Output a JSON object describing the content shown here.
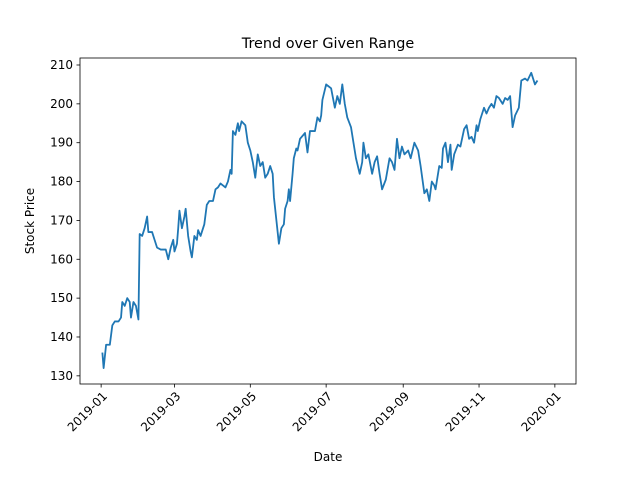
{
  "chart_data": {
    "type": "line",
    "title": "Trend over Given Range",
    "xlabel": "Date",
    "ylabel": "Stock Price",
    "x": [
      1,
      2,
      4,
      7,
      9,
      11,
      14,
      16,
      17,
      19,
      21,
      23,
      24,
      26,
      28,
      30,
      31,
      33,
      35,
      37,
      38,
      41,
      43,
      45,
      48,
      52,
      54,
      56,
      58,
      59,
      61,
      62,
      63,
      65,
      67,
      68,
      70,
      72,
      73,
      75,
      77,
      78,
      80,
      83,
      85,
      87,
      90,
      92,
      94,
      96,
      98,
      100,
      102,
      104,
      105,
      106,
      108,
      110,
      111,
      113,
      116,
      118,
      120,
      122,
      124,
      126,
      128,
      130,
      132,
      134,
      136,
      138,
      139,
      141,
      143,
      145,
      147,
      148,
      150,
      151,
      152,
      154,
      155,
      157,
      158,
      160,
      164,
      166,
      168,
      170,
      172,
      174,
      176,
      177,
      178,
      181,
      183,
      185,
      188,
      190,
      192,
      194,
      196,
      198,
      201,
      203,
      205,
      208,
      210,
      211,
      213,
      215,
      218,
      220,
      222,
      224,
      226,
      229,
      232,
      234,
      236,
      238,
      240,
      242,
      244,
      247,
      249,
      252,
      255,
      257,
      260,
      262,
      264,
      266,
      268,
      269,
      272,
      274,
      275,
      277,
      279,
      281,
      282,
      284,
      287,
      289,
      292,
      294,
      296,
      298,
      300,
      302,
      303,
      305,
      308,
      310,
      312,
      314,
      316,
      318,
      320,
      323,
      325,
      327,
      329,
      331,
      333,
      336,
      338,
      341,
      343,
      346,
      348,
      349,
      351
    ],
    "series": [
      {
        "name": "Stock Price",
        "color": "#1f77b4",
        "values": [
          136,
          132,
          138,
          138,
          143,
          144,
          144,
          145,
          149,
          148,
          150,
          149,
          145,
          149,
          148,
          144.5,
          166.5,
          166,
          168,
          171,
          167,
          167,
          165,
          163,
          162.5,
          162.5,
          160,
          163,
          165,
          162,
          164,
          168,
          172.5,
          168,
          171,
          173,
          166,
          162,
          160.5,
          166,
          165,
          167.5,
          166,
          169,
          174,
          175,
          175,
          178,
          178.5,
          179.5,
          179,
          178.5,
          180,
          183,
          182,
          193,
          192,
          195,
          193,
          195.5,
          194.5,
          190,
          188,
          185,
          181,
          187,
          184,
          185,
          181,
          182,
          184,
          182,
          176,
          170,
          164,
          168,
          169,
          173,
          175,
          178,
          175,
          182,
          186,
          188.5,
          188,
          191,
          192.5,
          187.5,
          193,
          193,
          193,
          196.5,
          195.5,
          197,
          201,
          205,
          204.5,
          204,
          199,
          202,
          200,
          205,
          200,
          196.5,
          194,
          190,
          186,
          182,
          185,
          190,
          186,
          187,
          182,
          185,
          186.5,
          182,
          178,
          180.5,
          186,
          185,
          183,
          191,
          186,
          189,
          187,
          188,
          186,
          190,
          188,
          184,
          177,
          178,
          175,
          180,
          179,
          178,
          184,
          183.5,
          188.5,
          190,
          185,
          189.5,
          183,
          187,
          189.5,
          189,
          193.5,
          194.5,
          191,
          191.5,
          190,
          194.5,
          193,
          196,
          199,
          197.5,
          199,
          200,
          199,
          202,
          201.5,
          200,
          201.5,
          201,
          202,
          194,
          197,
          199,
          206,
          206.5,
          206,
          208,
          206,
          205,
          206
        ]
      }
    ],
    "xlim": [
      -17,
      382
    ],
    "xticks": [
      {
        "value": 0,
        "label": "2019-01"
      },
      {
        "value": 59,
        "label": "2019-03"
      },
      {
        "value": 120,
        "label": "2019-05"
      },
      {
        "value": 181,
        "label": "2019-07"
      },
      {
        "value": 243,
        "label": "2019-09"
      },
      {
        "value": 304,
        "label": "2019-11"
      },
      {
        "value": 365,
        "label": "2020-01"
      }
    ],
    "ylim": [
      127.9,
      211.8
    ],
    "yticks": [
      130,
      140,
      150,
      160,
      170,
      180,
      190,
      200,
      210
    ],
    "grid": false
  }
}
